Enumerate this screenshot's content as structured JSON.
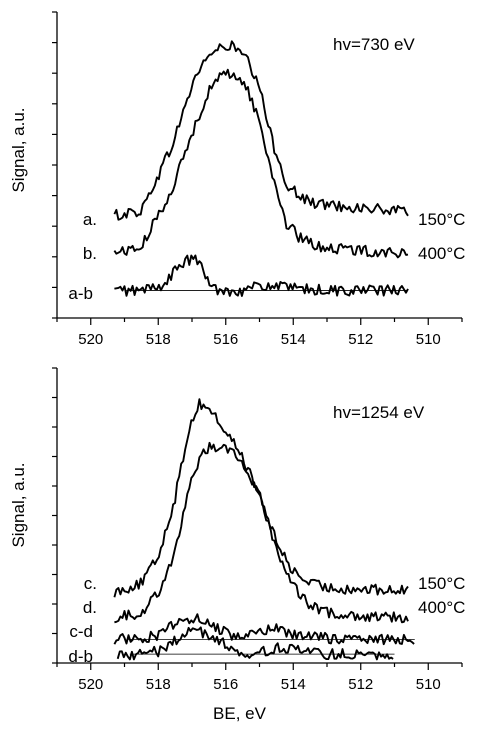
{
  "chart_data": [
    {
      "type": "line",
      "title": "",
      "xlabel": "",
      "ylabel": "Signal, a.u.",
      "xlim": [
        521,
        509
      ],
      "x_reversed": true,
      "ylim": [
        0,
        100
      ],
      "xticks": [
        520,
        518,
        516,
        514,
        512,
        510
      ],
      "xtick_labels": [
        "520",
        "518",
        "516",
        "514",
        "512",
        "510"
      ],
      "yticks_unlabeled": true,
      "annotation": "hv=730 eV",
      "series": [
        {
          "name": "a.",
          "label": "a.",
          "right_label": "150°C",
          "x": [
            519.3,
            518.5,
            517.6,
            517.0,
            516.6,
            516.2,
            515.8,
            515.4,
            515.0,
            514.6,
            514.2,
            513.8,
            513.4,
            513.0,
            512.0,
            511.0,
            510.6
          ],
          "y": [
            33.5,
            35.0,
            56.0,
            76.0,
            85.0,
            88.0,
            89.0,
            85.0,
            75.0,
            57.0,
            44.0,
            39.5,
            37.5,
            37.0,
            36.0,
            35.0,
            34.5
          ]
        },
        {
          "name": "b.",
          "label": "b.",
          "right_label": "400°C",
          "x": [
            519.3,
            518.5,
            517.6,
            517.0,
            516.6,
            516.2,
            515.8,
            515.4,
            515.0,
            514.6,
            514.2,
            513.8,
            513.4,
            513.0,
            512.0,
            511.0,
            510.6
          ],
          "y": [
            21.5,
            23.0,
            42.0,
            60.0,
            72.0,
            79.0,
            80.0,
            76.0,
            64.0,
            46.0,
            31.0,
            26.0,
            24.0,
            23.0,
            22.0,
            21.5,
            21.0
          ],
          "baseline": 21.5
        },
        {
          "name": "a-b",
          "label": "a-b",
          "x": [
            519.3,
            518.5,
            517.8,
            517.4,
            517.0,
            516.7,
            516.5,
            516.2,
            515.5,
            515.0,
            514.5,
            514.0,
            513.0,
            512.0,
            511.0,
            510.6
          ],
          "y": [
            9.0,
            9.0,
            11.0,
            17.0,
            19.5,
            17.0,
            11.0,
            9.0,
            9.0,
            10.5,
            10.5,
            9.5,
            9.0,
            9.0,
            9.0,
            9.0
          ],
          "baseline": 9.0
        }
      ]
    },
    {
      "type": "line",
      "title": "",
      "xlabel": "BE, eV",
      "ylabel": "Signal, a.u.",
      "xlim": [
        521,
        509
      ],
      "x_reversed": true,
      "ylim": [
        0,
        100
      ],
      "xticks": [
        520,
        518,
        516,
        514,
        512,
        510
      ],
      "xtick_labels": [
        "520",
        "518",
        "516",
        "514",
        "512",
        "510"
      ],
      "yticks_unlabeled": true,
      "annotation": "hv=1254 eV",
      "series": [
        {
          "name": "c.",
          "label": "c.",
          "right_label": "150°C",
          "x": [
            519.3,
            518.5,
            518.0,
            517.5,
            517.1,
            516.8,
            516.5,
            516.1,
            515.6,
            515.0,
            514.5,
            514.0,
            513.5,
            513.0,
            512.0,
            511.0,
            510.6
          ],
          "y": [
            24.0,
            27.0,
            36.0,
            56.0,
            79.0,
            88.0,
            86.5,
            80.0,
            72.0,
            57.0,
            41.0,
            31.0,
            27.0,
            25.5,
            25.0,
            24.5,
            24.5
          ]
        },
        {
          "name": "d.",
          "label": "d.",
          "right_label": "400°C",
          "x": [
            519.3,
            518.5,
            518.0,
            517.5,
            517.1,
            516.8,
            516.5,
            516.1,
            515.6,
            515.0,
            514.5,
            514.0,
            513.5,
            513.0,
            512.0,
            511.0,
            510.6
          ],
          "y": [
            15.5,
            17.0,
            24.0,
            38.0,
            58.0,
            69.0,
            73.0,
            74.0,
            70.0,
            56.0,
            39.0,
            26.0,
            19.5,
            17.0,
            16.0,
            15.5,
            15.5
          ]
        },
        {
          "name": "c-d",
          "label": "c-d",
          "x": [
            519.3,
            518.5,
            518.0,
            517.5,
            517.0,
            516.6,
            516.2,
            515.8,
            515.4,
            515.0,
            514.5,
            514.0,
            513.0,
            512.0,
            511.0,
            510.4
          ],
          "y": [
            8.0,
            8.5,
            9.5,
            13.0,
            15.5,
            14.0,
            11.5,
            9.5,
            9.0,
            10.0,
            12.0,
            9.5,
            8.5,
            8.0,
            8.0,
            8.0
          ],
          "baseline": 8.0
        },
        {
          "name": "d-b",
          "label": "d-b",
          "x": [
            519.2,
            518.5,
            518.0,
            517.6,
            517.3,
            517.0,
            516.7,
            516.4,
            516.0,
            515.6,
            515.2,
            514.8,
            514.4,
            514.0,
            513.5,
            513.0,
            512.0,
            511.0
          ],
          "y": [
            3.0,
            3.0,
            4.0,
            6.5,
            9.5,
            12.0,
            10.5,
            8.0,
            6.5,
            4.0,
            3.0,
            4.0,
            5.5,
            4.5,
            3.5,
            3.0,
            3.0,
            3.0
          ],
          "baseline": 3.0
        }
      ]
    }
  ]
}
